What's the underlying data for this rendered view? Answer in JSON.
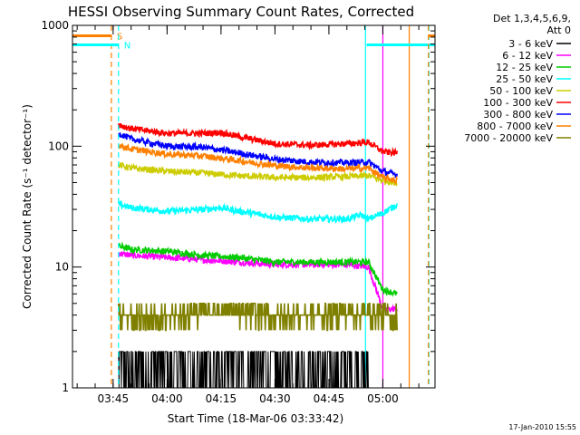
{
  "chart_data": {
    "type": "line",
    "title": "HESSI Observing Summary Count Rates, Corrected",
    "xlabel": "Start Time (18-Mar-06 03:33:42)",
    "ylabel": "Corrected Count Rate (s⁻¹ detector⁻¹)",
    "y_scale": "log",
    "ylim": [
      1,
      1000
    ],
    "y_ticks": [
      {
        "value": 1,
        "label": "1"
      },
      {
        "value": 10,
        "label": "10"
      },
      {
        "value": 100,
        "label": "100"
      },
      {
        "value": 1000,
        "label": "1000"
      }
    ],
    "xlim": [
      "03:33:42",
      "05:14:30"
    ],
    "x_ticks": [
      {
        "value": "03:45",
        "label": "03:45"
      },
      {
        "value": "04:00",
        "label": "04:00"
      },
      {
        "value": "04:15",
        "label": "04:15"
      },
      {
        "value": "04:30",
        "label": "04:30"
      },
      {
        "value": "04:45",
        "label": "04:45"
      },
      {
        "value": "05:00",
        "label": "05:00"
      }
    ],
    "legend_header": [
      "Det 1,3,4,5,6,9,",
      "Att 0"
    ],
    "legend_placement": "outside-right",
    "series": [
      {
        "name": "3 - 6 keV",
        "color": "#000000",
        "x": [
          "03:46:30",
          "04:00",
          "04:15",
          "04:30",
          "04:45",
          "04:56"
        ],
        "values": [
          1.5,
          1.5,
          1.5,
          1.5,
          1.5,
          1.5
        ]
      },
      {
        "name": "6 - 12 keV",
        "color": "#ff00ff",
        "x": [
          "03:46:30",
          "03:50",
          "04:00",
          "04:10",
          "04:20",
          "04:30",
          "04:40",
          "04:50",
          "04:56",
          "05:00",
          "05:04"
        ],
        "values": [
          13,
          12.5,
          12,
          11.5,
          11,
          10.5,
          10.5,
          10.5,
          10,
          4.5,
          4.5
        ]
      },
      {
        "name": "12 - 25 keV",
        "color": "#00cc00",
        "x": [
          "03:46:30",
          "03:50",
          "04:00",
          "04:10",
          "04:20",
          "04:30",
          "04:40",
          "04:50",
          "04:56",
          "05:00",
          "05:04"
        ],
        "values": [
          15,
          14,
          13.5,
          12.5,
          12,
          11,
          11,
          11,
          11,
          6.5,
          6
        ]
      },
      {
        "name": "25 - 50 keV",
        "color": "#00ffff",
        "x": [
          "03:46:30",
          "03:50",
          "04:00",
          "04:10",
          "04:15",
          "04:20",
          "04:30",
          "04:40",
          "04:50",
          "04:54",
          "04:56",
          "05:00",
          "05:04"
        ],
        "values": [
          33,
          31,
          29,
          30,
          31,
          29,
          26,
          25,
          25,
          27,
          25,
          28,
          33
        ]
      },
      {
        "name": "50 - 100 keV",
        "color": "#cccc00",
        "x": [
          "03:46:30",
          "03:50",
          "04:00",
          "04:10",
          "04:20",
          "04:30",
          "04:40",
          "04:50",
          "04:56",
          "05:00",
          "05:04"
        ],
        "values": [
          70,
          66,
          62,
          60,
          57,
          55,
          55,
          56,
          57,
          52,
          50
        ]
      },
      {
        "name": "100 - 300 keV",
        "color": "#ff0000",
        "x": [
          "03:46:30",
          "03:50",
          "04:00",
          "04:10",
          "04:15",
          "04:20",
          "04:30",
          "04:40",
          "04:50",
          "04:56",
          "05:00",
          "05:04"
        ],
        "values": [
          150,
          140,
          128,
          128,
          130,
          120,
          105,
          102,
          105,
          108,
          90,
          88
        ]
      },
      {
        "name": "300 - 800 keV",
        "color": "#0000ff",
        "x": [
          "03:46:30",
          "03:50",
          "04:00",
          "04:10",
          "04:20",
          "04:30",
          "04:40",
          "04:50",
          "04:56",
          "05:00",
          "05:04"
        ],
        "values": [
          128,
          115,
          100,
          98,
          88,
          78,
          74,
          73,
          74,
          62,
          58
        ]
      },
      {
        "name": "800 - 7000 keV",
        "color": "#ff8000",
        "x": [
          "03:46:30",
          "03:50",
          "04:00",
          "04:10",
          "04:20",
          "04:30",
          "04:40",
          "04:50",
          "04:56",
          "05:00",
          "05:04"
        ],
        "values": [
          102,
          95,
          86,
          83,
          76,
          69,
          66,
          65,
          66,
          55,
          52
        ]
      },
      {
        "name": "7000 - 20000 keV",
        "color": "#808000",
        "x": [
          "03:46:30",
          "03:55",
          "04:05",
          "04:10",
          "04:15",
          "04:20",
          "04:30",
          "04:40",
          "04:50",
          "04:56",
          "05:00",
          "05:04"
        ],
        "values": [
          4,
          3.5,
          4,
          5,
          5.5,
          4.5,
          4,
          4,
          4.5,
          4.5,
          4,
          3.5
        ]
      }
    ],
    "markers": [
      {
        "label": "S",
        "color": "#ff8000",
        "from": "03:33:42",
        "to": "03:44:30",
        "level": 820,
        "vline": "03:44:30"
      },
      {
        "label": "N",
        "color": "#00ffff",
        "from": "03:33:42",
        "to": "03:46:30",
        "level": 690,
        "vline": "03:46:30"
      },
      {
        "label": "",
        "color": "#00ffff",
        "from": "04:55:30",
        "to": "05:14:30",
        "level": 690,
        "vline": "05:12:50"
      },
      {
        "label": "",
        "color": "#ff8000",
        "from": "05:12:40",
        "to": "05:14:30",
        "level": 820,
        "vline": "05:12:40"
      }
    ],
    "background_vlines": [
      {
        "color": "#00ffff",
        "x": "04:55:10"
      },
      {
        "color": "#ff8000",
        "x": "05:07:20"
      },
      {
        "color": "#ff00ff",
        "x": "05:00:00"
      }
    ]
  },
  "footer_date": "17-Jan-2010 15:55"
}
